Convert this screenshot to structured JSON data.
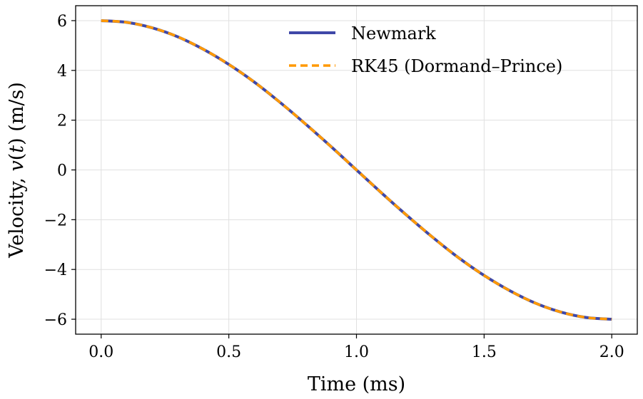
{
  "chart_data": {
    "type": "line",
    "title": "",
    "xlabel": "Time (ms)",
    "ylabel": "Velocity, v(t) (m/s)",
    "ylabel_parts": {
      "prefix": "Velocity, ",
      "func": "v",
      "arg": "(t)",
      "unit": " (m/s)"
    },
    "xlim": [
      -0.1,
      2.1
    ],
    "ylim": [
      -6.6,
      6.6
    ],
    "xticks": [
      0.0,
      0.5,
      1.0,
      1.5,
      2.0
    ],
    "xtick_labels": [
      "0.0",
      "0.5",
      "1.0",
      "1.5",
      "2.0"
    ],
    "yticks": [
      6,
      4,
      2,
      0,
      -2,
      -4,
      -6
    ],
    "ytick_labels": [
      "6",
      "4",
      "2",
      "0",
      "−2",
      "−4",
      "−6"
    ],
    "grid": true,
    "legend": "top-right",
    "series": [
      {
        "name": "Newmark",
        "color": "#3f48a8",
        "style": "solid",
        "x": [
          0.0,
          0.1,
          0.2,
          0.3,
          0.4,
          0.5,
          0.6,
          0.7,
          0.8,
          0.9,
          1.0,
          1.1,
          1.2,
          1.3,
          1.4,
          1.5,
          1.6,
          1.7,
          1.8,
          1.9,
          2.0
        ],
        "values": [
          6.0,
          5.93,
          5.71,
          5.35,
          4.85,
          4.24,
          3.53,
          2.72,
          1.85,
          0.94,
          0.0,
          -0.94,
          -1.85,
          -2.72,
          -3.53,
          -4.24,
          -4.85,
          -5.35,
          -5.71,
          -5.93,
          -6.0
        ]
      },
      {
        "name": "RK45 (Dormand–Prince)",
        "color": "#ff9900",
        "style": "dashed",
        "x": [
          0.0,
          0.1,
          0.2,
          0.3,
          0.4,
          0.5,
          0.6,
          0.7,
          0.8,
          0.9,
          1.0,
          1.1,
          1.2,
          1.3,
          1.4,
          1.5,
          1.6,
          1.7,
          1.8,
          1.9,
          2.0
        ],
        "values": [
          6.0,
          5.93,
          5.71,
          5.35,
          4.85,
          4.24,
          3.53,
          2.72,
          1.85,
          0.94,
          0.0,
          -0.94,
          -1.85,
          -2.72,
          -3.53,
          -4.24,
          -4.85,
          -5.35,
          -5.71,
          -5.93,
          -6.0
        ]
      }
    ]
  }
}
